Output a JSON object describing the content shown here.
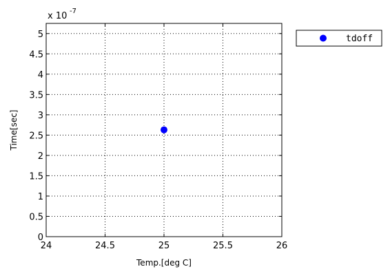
{
  "chart_data": {
    "type": "scatter",
    "xlabel": "Temp.[deg C]",
    "ylabel": "Time[sec]",
    "xlim": [
      24,
      26
    ],
    "ylim": [
      0,
      5.25e-07
    ],
    "x_ticks": [
      24,
      24.5,
      25,
      25.5,
      26
    ],
    "x_tick_labels": [
      "24",
      "24.5",
      "25",
      "25.5",
      "26"
    ],
    "y_ticks": [
      0,
      0.5,
      1,
      1.5,
      2,
      2.5,
      3,
      3.5,
      4,
      4.5,
      5
    ],
    "y_tick_labels": [
      "0",
      "0.5",
      "1",
      "1.5",
      "2",
      "2.5",
      "3",
      "3.5",
      "4",
      "4.5",
      "5"
    ],
    "y_exponent_base": "x 10",
    "y_exponent_power": "-7",
    "grid": true,
    "legend_position": "outside-top-right",
    "series": [
      {
        "name": "tdoff",
        "color": "#0000ff",
        "marker": "circle",
        "points": [
          {
            "x": 25,
            "y": 2.63e-07
          }
        ]
      }
    ]
  }
}
